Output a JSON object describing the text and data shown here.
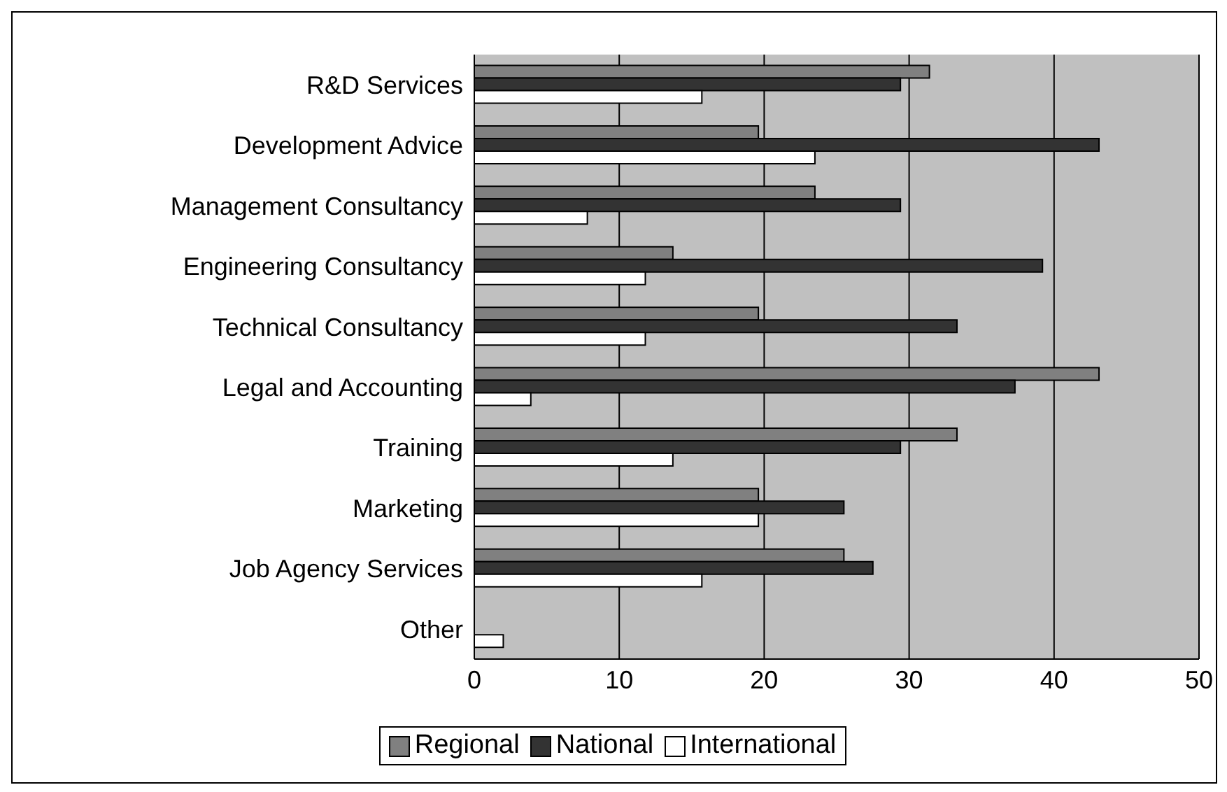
{
  "chart_data": {
    "type": "bar",
    "orientation": "horizontal",
    "categories": [
      "R&D Services",
      "Development Advice",
      "Management Consultancy",
      "Engineering Consultancy",
      "Technical Consultancy",
      "Legal and Accounting",
      "Training",
      "Marketing",
      "Job Agency Services",
      "Other"
    ],
    "series": [
      {
        "name": "Regional",
        "color": "#808080",
        "values": [
          31.4,
          19.6,
          23.5,
          13.7,
          19.6,
          43.1,
          33.3,
          19.6,
          25.5,
          0
        ]
      },
      {
        "name": "National",
        "color": "#333333",
        "values": [
          29.4,
          43.1,
          29.4,
          39.2,
          33.3,
          37.3,
          29.4,
          25.5,
          27.5,
          0
        ]
      },
      {
        "name": "International",
        "color": "#ffffff",
        "values": [
          15.7,
          23.5,
          7.8,
          11.8,
          11.8,
          3.9,
          13.7,
          19.6,
          15.7,
          2.0
        ]
      }
    ],
    "xlim": [
      0,
      50
    ],
    "xticks": [
      0,
      10,
      20,
      30,
      40,
      50
    ],
    "grid": "x",
    "legend": "bottom"
  }
}
